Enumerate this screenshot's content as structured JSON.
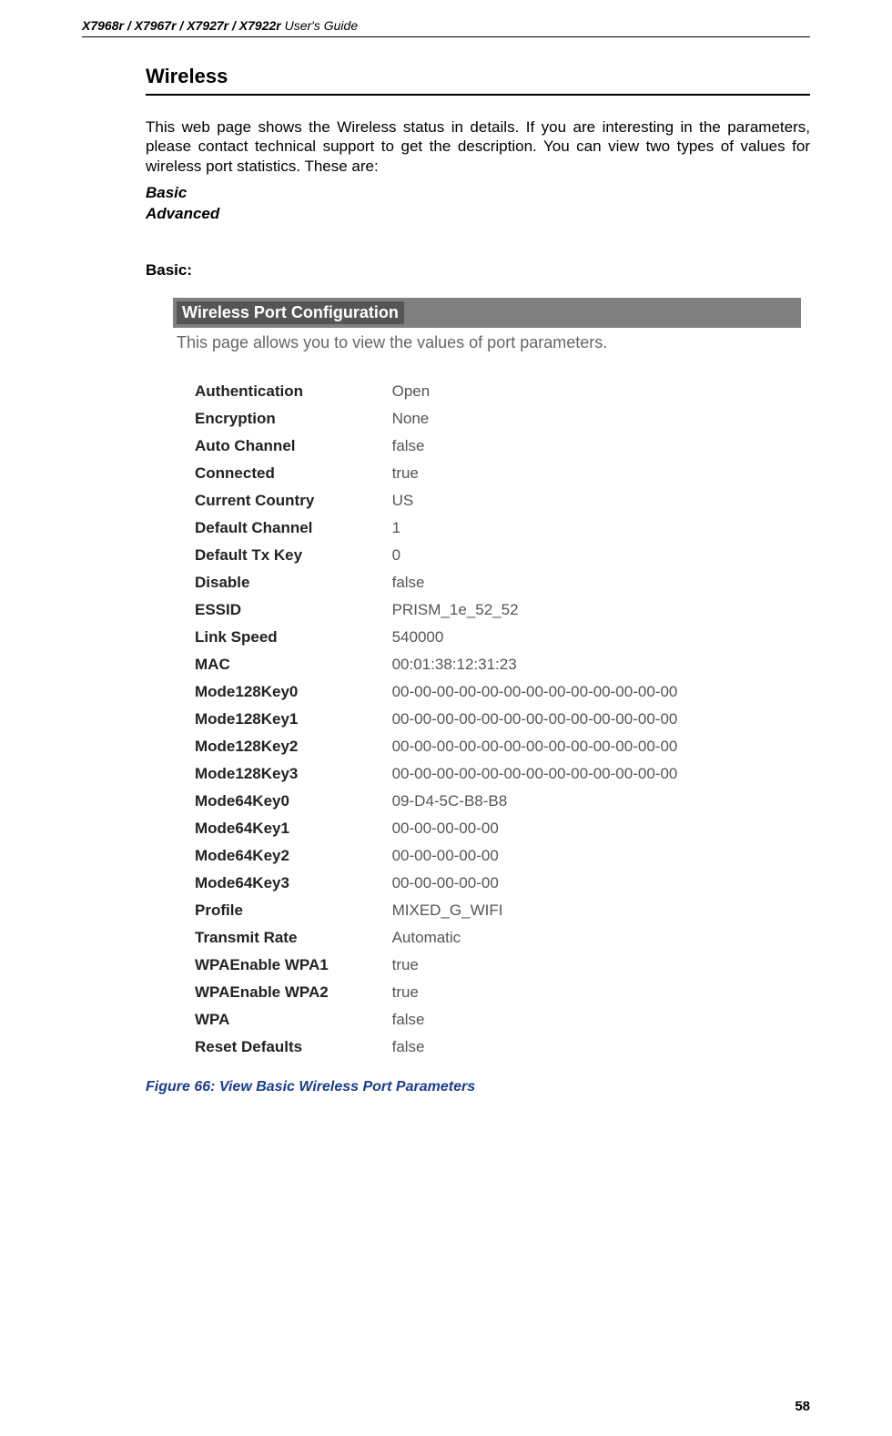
{
  "header": {
    "models": "X7968r / X7967r / X7927r / X7922r",
    "suffix": " User's Guide"
  },
  "section": {
    "title": "Wireless",
    "body": "This web page shows the Wireless status in details. If you are interesting in the parameters, please contact technical support to get the description. You can view two types of values for wireless port statistics. These are:",
    "types": [
      "Basic",
      "Advanced"
    ],
    "sub_heading": "Basic:"
  },
  "panel": {
    "title": "Wireless Port Configuration",
    "desc": "This page allows you to view the values of port parameters.",
    "rows": [
      {
        "label": "Authentication",
        "value": "Open"
      },
      {
        "label": "Encryption",
        "value": "None"
      },
      {
        "label": "Auto Channel",
        "value": "false"
      },
      {
        "label": "Connected",
        "value": "true"
      },
      {
        "label": "Current Country",
        "value": "US"
      },
      {
        "label": "Default Channel",
        "value": "1"
      },
      {
        "label": "Default Tx Key",
        "value": "0"
      },
      {
        "label": "Disable",
        "value": "false"
      },
      {
        "label": "ESSID",
        "value": "PRISM_1e_52_52"
      },
      {
        "label": "Link Speed",
        "value": "540000"
      },
      {
        "label": "MAC",
        "value": "00:01:38:12:31:23"
      },
      {
        "label": "Mode128Key0",
        "value": "00-00-00-00-00-00-00-00-00-00-00-00-00"
      },
      {
        "label": "Mode128Key1",
        "value": "00-00-00-00-00-00-00-00-00-00-00-00-00"
      },
      {
        "label": "Mode128Key2",
        "value": "00-00-00-00-00-00-00-00-00-00-00-00-00"
      },
      {
        "label": "Mode128Key3",
        "value": "00-00-00-00-00-00-00-00-00-00-00-00-00"
      },
      {
        "label": "Mode64Key0",
        "value": "09-D4-5C-B8-B8"
      },
      {
        "label": "Mode64Key1",
        "value": "00-00-00-00-00"
      },
      {
        "label": "Mode64Key2",
        "value": "00-00-00-00-00"
      },
      {
        "label": "Mode64Key3",
        "value": "00-00-00-00-00"
      },
      {
        "label": "Profile",
        "value": "MIXED_G_WIFI"
      },
      {
        "label": "Transmit Rate",
        "value": "Automatic"
      },
      {
        "label": "WPAEnable WPA1",
        "value": "true"
      },
      {
        "label": "WPAEnable WPA2",
        "value": "true"
      },
      {
        "label": "WPA",
        "value": "false"
      },
      {
        "label": "Reset Defaults",
        "value": "false"
      }
    ]
  },
  "figure_caption": "Figure 66: View Basic Wireless Port Parameters",
  "page_number": "58",
  "colors": {
    "caption_color": "#1a3d8f",
    "panel_title_bg": "#555555",
    "panel_title_outer_bg": "#808080",
    "desc_color": "#666666",
    "value_color": "#555555"
  }
}
